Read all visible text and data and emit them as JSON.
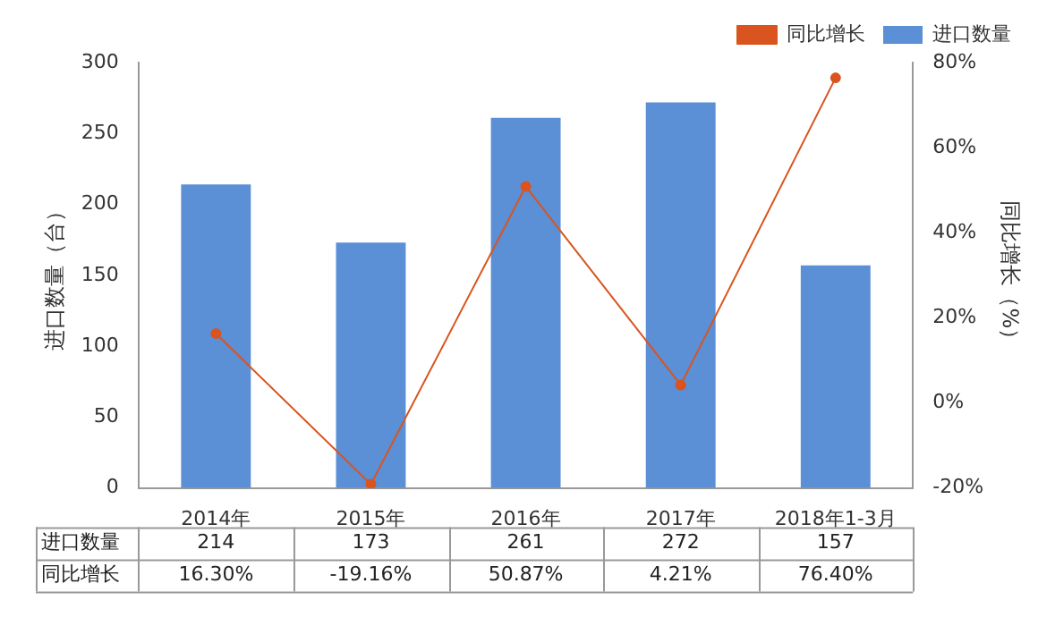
{
  "chart_data": {
    "type": "bar",
    "ylabel": "进口数量（台）",
    "y2label": "同比增长（%）",
    "categories": [
      "2014年",
      "2015年",
      "2016年",
      "2017年",
      "2018年1-3月"
    ],
    "series": [
      {
        "name": "进口数量",
        "color": "#5b8fd6",
        "values": [
          214,
          173,
          261,
          272,
          157
        ],
        "value_labels": [
          "214",
          "173",
          "261",
          "272",
          "157"
        ]
      },
      {
        "name": "同比增长",
        "type": "line",
        "axis": "y2",
        "color": "#d9541e",
        "values": [
          16.3,
          -19.16,
          50.87,
          4.21,
          76.4
        ],
        "value_labels": [
          "16.30%",
          "-19.16%",
          "50.87%",
          "4.21%",
          "76.40%"
        ],
        "marker": "circle"
      }
    ],
    "ylim": [
      0,
      300
    ],
    "yticks": [
      0,
      50,
      100,
      150,
      200,
      250,
      300
    ],
    "y2lim": [
      -20,
      80
    ],
    "y2ticks": [
      {
        "value": -20,
        "label": "-20%"
      },
      {
        "value": 0,
        "label": "0%"
      },
      {
        "value": 20,
        "label": "20%"
      },
      {
        "value": 40,
        "label": "40%"
      },
      {
        "value": 60,
        "label": "60%"
      },
      {
        "value": 80,
        "label": "80%"
      }
    ],
    "grid": false,
    "legend": "top right"
  }
}
